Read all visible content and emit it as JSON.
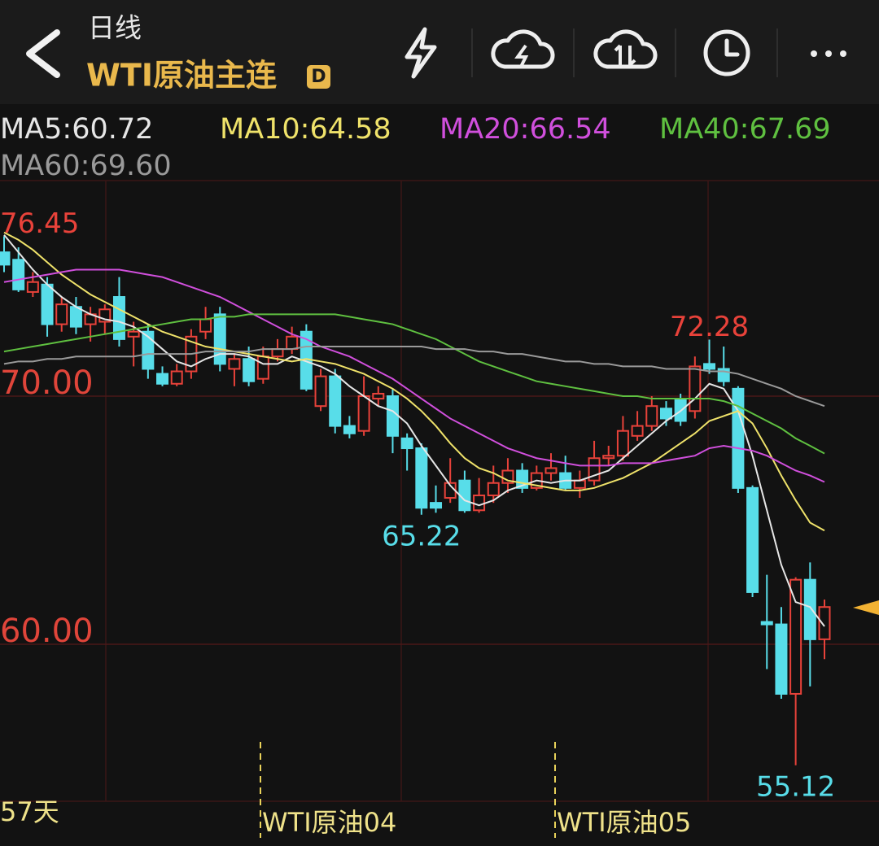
{
  "header": {
    "period": "日线",
    "title": "WTI原油主连",
    "badge": "D"
  },
  "footer": {
    "range": "57天",
    "contract_markers": [
      "WTI原油04",
      "WTI原油05"
    ]
  },
  "chart_data": {
    "type": "candlestick",
    "open": [
      75.8,
      75.5,
      74.2,
      74.5,
      72.9,
      73.6,
      72.9,
      73.0,
      74.0,
      72.4,
      72.6,
      70.9,
      70.5,
      71.0,
      72.6,
      73.3,
      71.1,
      71.5,
      70.7,
      71.6,
      71.9,
      72.6,
      69.6,
      70.8,
      68.8,
      68.6,
      69.9,
      70.0,
      68.3,
      67.9,
      65.7,
      65.9,
      66.6,
      65.4,
      66.0,
      66.5,
      67.0,
      66.3,
      66.9,
      66.9,
      66.3,
      66.6,
      67.5,
      67.6,
      68.4,
      68.8,
      69.5,
      69.9,
      69.4,
      71.3,
      71.1,
      70.3,
      66.3,
      60.9,
      60.8,
      58.0,
      62.6,
      60.2
    ],
    "high": [
      76.45,
      76.0,
      75.0,
      74.8,
      74.0,
      74.0,
      73.6,
      73.7,
      74.8,
      73.0,
      72.9,
      71.2,
      71.3,
      72.7,
      73.6,
      73.6,
      71.7,
      72.0,
      72.0,
      72.3,
      72.8,
      72.9,
      71.1,
      71.1,
      69.2,
      70.8,
      70.4,
      70.3,
      68.5,
      68.1,
      66.4,
      67.5,
      67.0,
      66.7,
      67.2,
      67.5,
      67.3,
      67.2,
      67.7,
      67.6,
      67.0,
      68.2,
      68.0,
      69.2,
      69.4,
      70.0,
      69.8,
      70.1,
      71.6,
      72.28,
      72.0,
      70.4,
      66.4,
      62.8,
      61.5,
      62.7,
      63.3,
      61.8
    ],
    "low": [
      75.0,
      74.2,
      74.0,
      72.4,
      72.6,
      72.5,
      72.2,
      72.5,
      72.0,
      71.2,
      70.7,
      70.4,
      70.4,
      70.7,
      72.3,
      71.0,
      70.4,
      70.4,
      70.5,
      71.4,
      71.7,
      70.2,
      69.4,
      68.5,
      68.3,
      68.4,
      69.6,
      67.7,
      67.0,
      65.22,
      65.3,
      65.7,
      65.3,
      65.3,
      65.7,
      66.1,
      66.1,
      66.2,
      66.6,
      66.2,
      65.9,
      66.4,
      67.2,
      67.4,
      68.2,
      68.6,
      68.8,
      68.8,
      69.1,
      70.9,
      70.4,
      66.1,
      61.9,
      59.0,
      57.8,
      55.12,
      58.3,
      59.4
    ],
    "close": [
      75.3,
      74.3,
      74.6,
      72.9,
      73.7,
      72.8,
      73.3,
      73.5,
      72.3,
      72.6,
      71.1,
      70.5,
      71.0,
      72.4,
      73.1,
      71.3,
      71.5,
      70.6,
      71.6,
      71.9,
      72.4,
      70.3,
      70.8,
      68.8,
      68.5,
      70.0,
      70.1,
      68.4,
      67.9,
      65.5,
      65.5,
      66.5,
      65.4,
      66.0,
      66.5,
      67.0,
      66.3,
      66.9,
      67.1,
      66.3,
      66.6,
      67.5,
      67.6,
      68.6,
      68.8,
      69.6,
      69.1,
      69.0,
      71.2,
      71.1,
      70.6,
      66.3,
      62.1,
      60.8,
      58.0,
      62.6,
      60.2,
      61.5
    ],
    "up_color": "#e8423a",
    "down_color": "#58dde9",
    "lines": [
      {
        "name": "MA5:60.72",
        "color": "#e6e6e6",
        "values": [
          76.5,
          75.8,
          75.1,
          74.5,
          74.0,
          73.6,
          73.3,
          73.1,
          73.0,
          72.8,
          72.4,
          71.9,
          71.4,
          71.2,
          71.5,
          71.7,
          71.7,
          71.6,
          71.3,
          71.3,
          71.6,
          71.4,
          71.2,
          70.9,
          70.4,
          70.0,
          69.6,
          69.4,
          68.9,
          68.0,
          67.2,
          66.4,
          65.8,
          65.6,
          65.8,
          66.2,
          66.4,
          66.6,
          66.5,
          66.6,
          66.6,
          66.8,
          67.0,
          67.5,
          68.0,
          68.5,
          69.0,
          69.4,
          69.9,
          70.5,
          70.3,
          69.4,
          67.6,
          65.4,
          63.2,
          61.7,
          61.5,
          60.72
        ]
      },
      {
        "name": "MA10:64.58",
        "color": "#efe26a",
        "values": [
          76.6,
          76.3,
          75.9,
          75.4,
          74.9,
          74.5,
          74.1,
          73.8,
          73.5,
          73.2,
          72.9,
          72.6,
          72.4,
          72.2,
          72.0,
          71.9,
          71.8,
          71.7,
          71.6,
          71.5,
          71.4,
          71.5,
          71.4,
          71.3,
          71.1,
          70.9,
          70.6,
          70.3,
          69.9,
          69.4,
          68.8,
          68.1,
          67.5,
          67.1,
          66.9,
          66.6,
          66.5,
          66.4,
          66.3,
          66.2,
          66.2,
          66.3,
          66.5,
          66.7,
          67.0,
          67.3,
          67.7,
          68.1,
          68.5,
          69.0,
          69.2,
          69.4,
          68.9,
          67.9,
          66.8,
          65.8,
          64.9,
          64.58
        ]
      },
      {
        "name": "MA20:66.54",
        "color": "#d04fdc",
        "values": [
          74.6,
          74.7,
          74.8,
          74.9,
          75.0,
          75.1,
          75.1,
          75.1,
          75.1,
          75.0,
          74.9,
          74.8,
          74.6,
          74.4,
          74.2,
          74.0,
          73.7,
          73.4,
          73.1,
          72.8,
          72.5,
          72.3,
          72.0,
          71.8,
          71.6,
          71.3,
          71.0,
          70.7,
          70.3,
          69.9,
          69.5,
          69.1,
          68.8,
          68.5,
          68.2,
          67.9,
          67.7,
          67.5,
          67.4,
          67.3,
          67.2,
          67.2,
          67.2,
          67.3,
          67.3,
          67.3,
          67.4,
          67.5,
          67.6,
          67.9,
          68.0,
          67.9,
          67.8,
          67.6,
          67.3,
          67.0,
          66.8,
          66.54
        ]
      },
      {
        "name": "MA40:67.69",
        "color": "#5fc040",
        "values": [
          71.8,
          71.9,
          72.0,
          72.1,
          72.2,
          72.3,
          72.4,
          72.5,
          72.6,
          72.7,
          72.8,
          72.9,
          73.0,
          73.1,
          73.1,
          73.2,
          73.2,
          73.3,
          73.3,
          73.3,
          73.3,
          73.3,
          73.3,
          73.3,
          73.2,
          73.1,
          73.0,
          72.9,
          72.7,
          72.5,
          72.3,
          72.0,
          71.7,
          71.4,
          71.2,
          71.0,
          70.8,
          70.6,
          70.5,
          70.4,
          70.3,
          70.2,
          70.1,
          70.0,
          70.0,
          69.9,
          69.9,
          69.9,
          69.9,
          69.9,
          69.8,
          69.6,
          69.3,
          69.0,
          68.7,
          68.3,
          68.0,
          67.69
        ]
      },
      {
        "name": "MA60:69.60",
        "color": "#9a9a9a",
        "values": [
          71.3,
          71.4,
          71.4,
          71.5,
          71.5,
          71.6,
          71.6,
          71.6,
          71.6,
          71.6,
          71.7,
          71.7,
          71.7,
          71.7,
          71.8,
          71.8,
          71.8,
          71.8,
          71.9,
          71.9,
          71.9,
          72.0,
          72.0,
          72.0,
          72.0,
          72.0,
          72.0,
          72.0,
          72.0,
          72.0,
          71.9,
          71.9,
          71.9,
          71.8,
          71.8,
          71.7,
          71.7,
          71.6,
          71.5,
          71.4,
          71.4,
          71.3,
          71.3,
          71.2,
          71.2,
          71.2,
          71.1,
          71.1,
          71.1,
          71.0,
          71.0,
          70.9,
          70.7,
          70.5,
          70.3,
          70.0,
          69.8,
          69.6
        ]
      }
    ],
    "ylim": [
      53.67,
      78.69
    ],
    "yticks": [
      {
        "value": 70,
        "label": "70.00"
      },
      {
        "value": 60,
        "label": "60.00"
      }
    ],
    "annotations": [
      {
        "label": "76.45",
        "value": 76.45
      },
      {
        "label": "72.28",
        "value": 72.28
      },
      {
        "label": "65.22",
        "value": 65.22
      },
      {
        "label": "55.12",
        "value": 55.12
      }
    ]
  }
}
